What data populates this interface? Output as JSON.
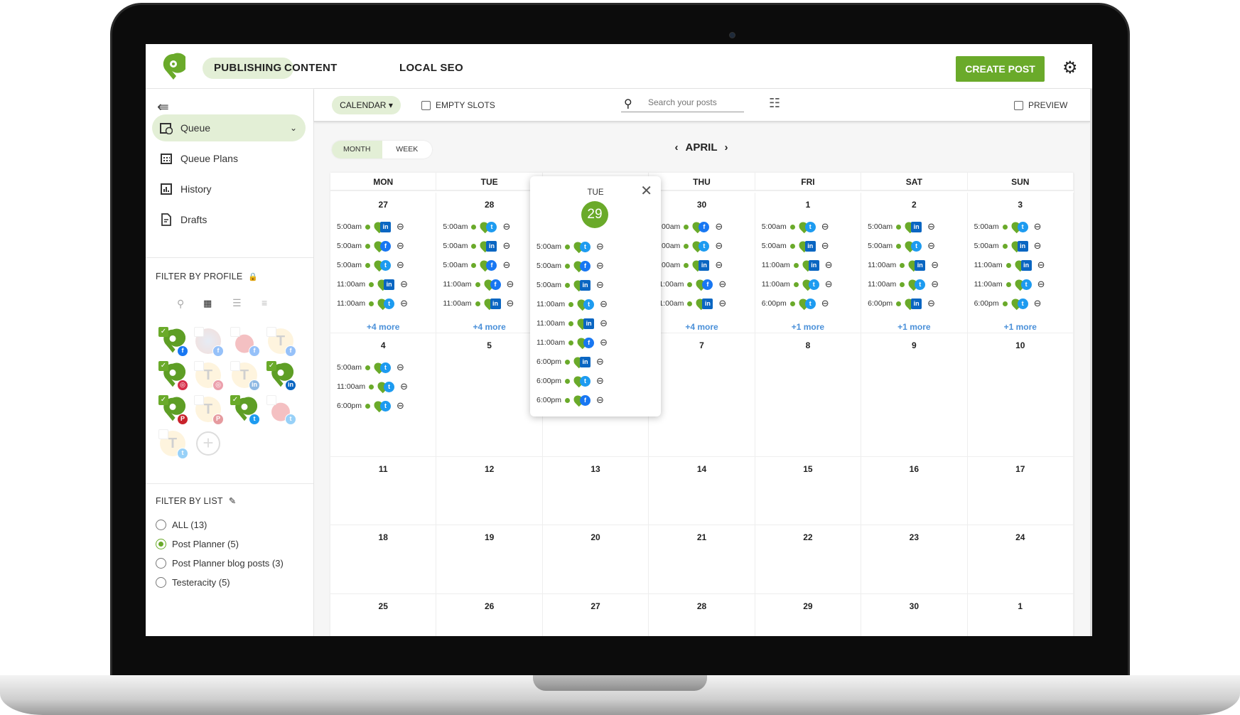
{
  "colors": {
    "accent": "#6aaa2a",
    "accent_light": "#e3efd6",
    "link": "#4a90d9",
    "twitter": "#1d9bf0",
    "facebook": "#1877f2",
    "linkedin": "#0a66c2"
  },
  "nav": {
    "tabs": [
      {
        "label": "PUBLISHING",
        "active": true
      },
      {
        "label": "CONTENT"
      },
      {
        "label": "LOCAL SEO"
      }
    ],
    "create_post": "CREATE POST",
    "settings_icon": "gear-icon"
  },
  "sidebar": {
    "items": [
      {
        "label": "Queue",
        "icon": "calendar-clock-icon",
        "active": true
      },
      {
        "label": "Queue Plans",
        "icon": "calendar-grid-icon"
      },
      {
        "label": "History",
        "icon": "bar-chart-icon"
      },
      {
        "label": "Drafts",
        "icon": "draft-icon"
      }
    ],
    "filter_profile_title": "FILTER BY PROFILE",
    "profiles": [
      {
        "kind": "pp",
        "net": "fb",
        "checked": true
      },
      {
        "kind": "photo",
        "net": "fb",
        "checked": false
      },
      {
        "kind": "berry",
        "net": "fb",
        "checked": false
      },
      {
        "kind": "letter",
        "letter": "T",
        "net": "fb",
        "checked": false
      },
      {
        "kind": "pp",
        "net": "ig",
        "checked": true
      },
      {
        "kind": "letter",
        "letter": "T",
        "net": "ig",
        "checked": false
      },
      {
        "kind": "letter",
        "letter": "T",
        "net": "li",
        "checked": false
      },
      {
        "kind": "pp",
        "net": "li",
        "checked": true
      },
      {
        "kind": "pp",
        "net": "pin",
        "checked": true
      },
      {
        "kind": "letter",
        "letter": "T",
        "net": "pin",
        "checked": false
      },
      {
        "kind": "pp",
        "net": "tw",
        "checked": true
      },
      {
        "kind": "berry",
        "net": "tw",
        "checked": false
      },
      {
        "kind": "letter",
        "letter": "T",
        "net": "tw",
        "checked": false
      }
    ],
    "filter_list_title": "FILTER BY LIST",
    "lists": [
      {
        "label": "ALL (13)",
        "selected": false
      },
      {
        "label": "Post Planner (5)",
        "selected": true
      },
      {
        "label": "Post Planner blog posts (3)",
        "selected": false
      },
      {
        "label": "Testeracity (5)",
        "selected": false
      }
    ]
  },
  "toolbar": {
    "view": "CALENDAR",
    "empty_slots": "EMPTY SLOTS",
    "search_placeholder": "Search your posts",
    "preview": "PREVIEW"
  },
  "calendar": {
    "view_toggle": [
      {
        "label": "MONTH",
        "active": true
      },
      {
        "label": "WEEK",
        "active": false
      }
    ],
    "month": "APRIL",
    "days": [
      "MON",
      "TUE",
      "",
      "THU",
      "FRI",
      "SAT",
      "SUN"
    ],
    "weeks": [
      [
        {
          "date": "27",
          "posts": [
            [
              "5:00am",
              "li"
            ],
            [
              "5:00am",
              "fb"
            ],
            [
              "5:00am",
              "tw"
            ],
            [
              "11:00am",
              "li"
            ],
            [
              "11:00am",
              "tw"
            ]
          ],
          "more": "+4 more"
        },
        {
          "date": "28",
          "posts": [
            [
              "5:00am",
              "tw"
            ],
            [
              "5:00am",
              "li"
            ],
            [
              "5:00am",
              "fb"
            ],
            [
              "11:00am",
              "fb"
            ],
            [
              "11:00am",
              "li"
            ]
          ],
          "more": "+4 more"
        },
        {
          "date": "",
          "posts": []
        },
        {
          "date": "30",
          "posts": [
            [
              "5:00am",
              "fb"
            ],
            [
              "5:00am",
              "tw"
            ],
            [
              "5:00am",
              "li"
            ],
            [
              "11:00am",
              "fb"
            ],
            [
              "11:00am",
              "li"
            ]
          ],
          "more": "+4 more"
        },
        {
          "date": "1",
          "posts": [
            [
              "5:00am",
              "tw"
            ],
            [
              "5:00am",
              "li"
            ],
            [
              "11:00am",
              "li"
            ],
            [
              "11:00am",
              "tw"
            ],
            [
              "6:00pm",
              "tw"
            ]
          ],
          "more": "+1 more"
        },
        {
          "date": "2",
          "posts": [
            [
              "5:00am",
              "li"
            ],
            [
              "5:00am",
              "tw"
            ],
            [
              "11:00am",
              "li"
            ],
            [
              "11:00am",
              "tw"
            ],
            [
              "6:00pm",
              "li"
            ]
          ],
          "more": "+1 more"
        },
        {
          "date": "3",
          "posts": [
            [
              "5:00am",
              "tw"
            ],
            [
              "5:00am",
              "li"
            ],
            [
              "11:00am",
              "li"
            ],
            [
              "11:00am",
              "tw"
            ],
            [
              "6:00pm",
              "tw"
            ]
          ],
          "more": "+1 more"
        }
      ],
      [
        {
          "date": "4",
          "posts": [
            [
              "5:00am",
              "tw"
            ],
            [
              "11:00am",
              "tw"
            ],
            [
              "6:00pm",
              "tw"
            ]
          ]
        },
        {
          "date": "5",
          "posts": []
        },
        {
          "date": "",
          "posts": []
        },
        {
          "date": "7",
          "posts": []
        },
        {
          "date": "8",
          "posts": []
        },
        {
          "date": "9",
          "posts": []
        },
        {
          "date": "10",
          "posts": []
        }
      ],
      [
        {
          "date": "11"
        },
        {
          "date": "12"
        },
        {
          "date": "13"
        },
        {
          "date": "14"
        },
        {
          "date": "15"
        },
        {
          "date": "16"
        },
        {
          "date": "17"
        }
      ],
      [
        {
          "date": "18"
        },
        {
          "date": "19"
        },
        {
          "date": "20"
        },
        {
          "date": "21"
        },
        {
          "date": "22"
        },
        {
          "date": "23"
        },
        {
          "date": "24"
        }
      ],
      [
        {
          "date": "25"
        },
        {
          "date": "26"
        },
        {
          "date": "27"
        },
        {
          "date": "28"
        },
        {
          "date": "29"
        },
        {
          "date": "30"
        },
        {
          "date": "1"
        }
      ]
    ],
    "popup": {
      "dow": "TUE",
      "date": "29",
      "posts": [
        [
          "5:00am",
          "tw"
        ],
        [
          "5:00am",
          "fb"
        ],
        [
          "5:00am",
          "li"
        ],
        [
          "11:00am",
          "tw"
        ],
        [
          "11:00am",
          "li"
        ],
        [
          "11:00am",
          "fb"
        ],
        [
          "6:00pm",
          "li"
        ],
        [
          "6:00pm",
          "tw"
        ],
        [
          "6:00pm",
          "fb"
        ]
      ]
    }
  }
}
